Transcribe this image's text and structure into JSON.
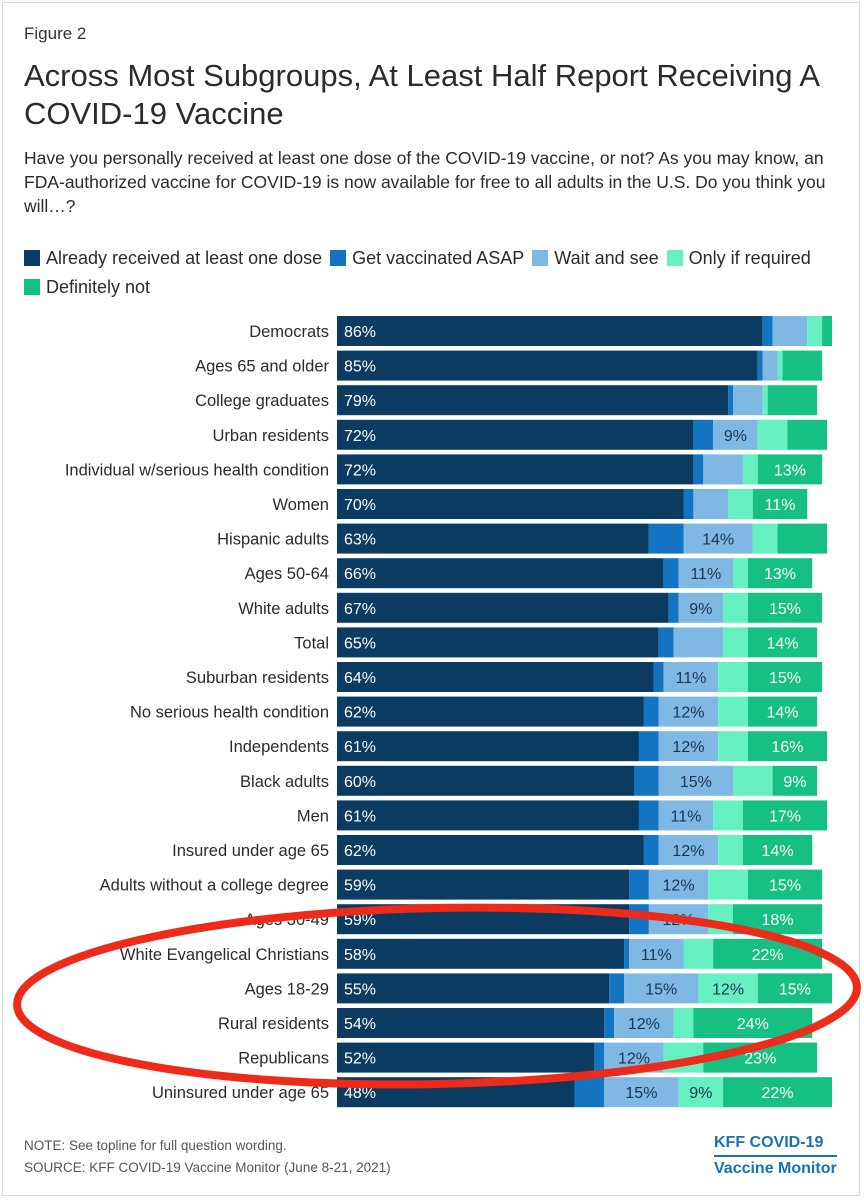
{
  "figure_label": "Figure 2",
  "title": "Across Most Subgroups, At Least Half Report Receiving A COVID-19 Vaccine",
  "subtitle": "Have you personally received at least one dose of the COVID-19 vaccine, or not? As you may know, an FDA-authorized vaccine for COVID-19 is now available for free to all adults in the U.S. Do you think you will…?",
  "footnote": "NOTE: See topline for full question wording.",
  "source": "SOURCE: KFF COVID-19 Vaccine Monitor (June 8-21, 2021)",
  "brand": {
    "line1": "KFF COVID-19",
    "line2": "Vaccine Monitor"
  },
  "annotation": {
    "shape": "ellipse",
    "color": "#ee2a1b",
    "highlighted_rows": [
      "White Evangelical Christians",
      "Ages 18-29",
      "Rural residents",
      "Republicans"
    ]
  },
  "chart_data": {
    "type": "bar",
    "orientation": "horizontal",
    "stacked": true,
    "series": [
      {
        "name": "Already received at least one dose",
        "color": "#0c3b61"
      },
      {
        "name": "Get vaccinated ASAP",
        "color": "#1374c2"
      },
      {
        "name": "Wait and see",
        "color": "#7fb8e3"
      },
      {
        "name": "Only if required",
        "color": "#64f0c0"
      },
      {
        "name": "Definitely not",
        "color": "#16bf82"
      }
    ],
    "categories": [
      "Democrats",
      "Ages 65 and older",
      "College graduates",
      "Urban residents",
      "Individual w/serious health condition",
      "Women",
      "Hispanic adults",
      "Ages 50-64",
      "White adults",
      "Total",
      "Suburban residents",
      "No serious health condition",
      "Independents",
      "Black adults",
      "Men",
      "Insured under age 65",
      "Adults without a college degree",
      "Ages 30-49",
      "White Evangelical Christians",
      "Ages 18-29",
      "Rural residents",
      "Republicans",
      "Uninsured under age 65"
    ],
    "values": [
      [
        86,
        2,
        7,
        3,
        2
      ],
      [
        85,
        1,
        3,
        1,
        8
      ],
      [
        79,
        1,
        6,
        1,
        10
      ],
      [
        72,
        4,
        9,
        6,
        8
      ],
      [
        72,
        2,
        8,
        3,
        13
      ],
      [
        70,
        2,
        7,
        5,
        11
      ],
      [
        63,
        7,
        14,
        5,
        10
      ],
      [
        66,
        3,
        11,
        3,
        13
      ],
      [
        67,
        2,
        9,
        5,
        15
      ],
      [
        65,
        3,
        10,
        5,
        14
      ],
      [
        64,
        2,
        11,
        6,
        15
      ],
      [
        62,
        3,
        12,
        6,
        14
      ],
      [
        61,
        4,
        12,
        6,
        16
      ],
      [
        60,
        5,
        15,
        8,
        9
      ],
      [
        61,
        4,
        11,
        6,
        17
      ],
      [
        62,
        3,
        12,
        5,
        14
      ],
      [
        59,
        4,
        12,
        8,
        15
      ],
      [
        59,
        4,
        12,
        5,
        18
      ],
      [
        58,
        1,
        11,
        6,
        22
      ],
      [
        55,
        3,
        15,
        12,
        15
      ],
      [
        54,
        2,
        12,
        4,
        24
      ],
      [
        52,
        2,
        12,
        8,
        23
      ],
      [
        48,
        6,
        15,
        9,
        22
      ]
    ],
    "labels_shown": [
      [
        "86%",
        "",
        "",
        "",
        ""
      ],
      [
        "85%",
        "",
        "",
        "",
        ""
      ],
      [
        "79%",
        "",
        "",
        "",
        ""
      ],
      [
        "72%",
        "",
        "9%",
        "",
        ""
      ],
      [
        "72%",
        "",
        "",
        "",
        "13%"
      ],
      [
        "70%",
        "",
        "",
        "",
        "11%"
      ],
      [
        "63%",
        "",
        "14%",
        "",
        ""
      ],
      [
        "66%",
        "",
        "11%",
        "",
        "13%"
      ],
      [
        "67%",
        "",
        "9%",
        "",
        "15%"
      ],
      [
        "65%",
        "",
        "",
        "",
        "14%"
      ],
      [
        "64%",
        "",
        "11%",
        "",
        "15%"
      ],
      [
        "62%",
        "",
        "12%",
        "",
        "14%"
      ],
      [
        "61%",
        "",
        "12%",
        "",
        "16%"
      ],
      [
        "60%",
        "",
        "15%",
        "",
        "9%"
      ],
      [
        "61%",
        "",
        "11%",
        "",
        "17%"
      ],
      [
        "62%",
        "",
        "12%",
        "",
        "14%"
      ],
      [
        "59%",
        "",
        "12%",
        "",
        "15%"
      ],
      [
        "59%",
        "",
        "12%",
        "",
        "18%"
      ],
      [
        "58%",
        "",
        "11%",
        "",
        "22%"
      ],
      [
        "55%",
        "",
        "15%",
        "12%",
        "15%"
      ],
      [
        "54%",
        "",
        "12%",
        "",
        "24%"
      ],
      [
        "52%",
        "",
        "12%",
        "",
        "23%"
      ],
      [
        "48%",
        "",
        "15%",
        "9%",
        "22%"
      ]
    ],
    "xlim": [
      0,
      100
    ],
    "grid": false,
    "legend_position": "top"
  }
}
